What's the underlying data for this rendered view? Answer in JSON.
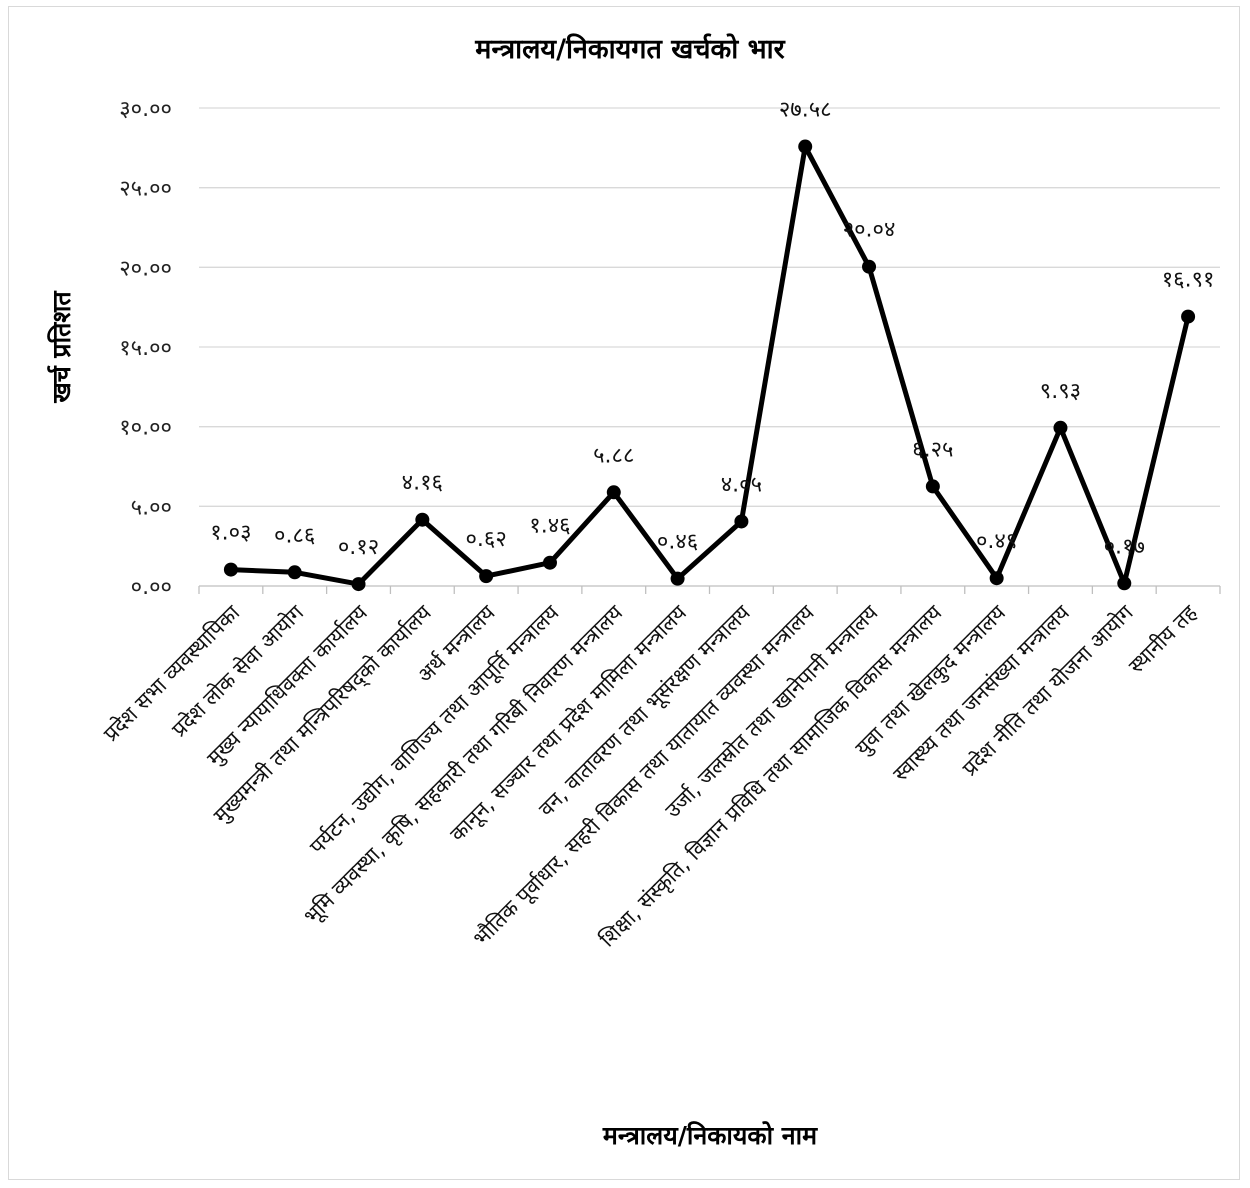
{
  "chart_data": {
    "type": "line",
    "title": "मन्त्रालय/निकायगत खर्चको भार",
    "xlabel": "मन्त्रालय/निकायको नाम",
    "ylabel": "खर्च प्रतिशत",
    "ylim": [
      0,
      30
    ],
    "yticks": [
      0,
      5,
      10,
      15,
      20,
      25,
      30
    ],
    "ytick_labels": [
      "०.००",
      "५.००",
      "१०.००",
      "१५.००",
      "२०.००",
      "२५.००",
      "३०.००"
    ],
    "grid": true,
    "legend": "none",
    "categories": [
      "प्रदेश सभा व्यवस्थापिका",
      "प्रदेश लोक सेवा आयोग",
      "मुख्य न्यायाधिवक्ता कार्यालय",
      "मुख्यमन्त्री तथा मन्त्रिपरिषद्को कार्यालय",
      "अर्थ मन्त्रालय",
      "पर्यटन, उद्योग, वाणिज्य तथा आपूर्ति मन्त्रालय",
      "भूमि व्यवस्था, कृषि, सहकारी तथा गरिबी निवारण मन्त्रालय",
      "कानून, सञ्चार तथा प्रदेश मामिला मन्त्रालय",
      "वन, वातावरण तथा भूसंरक्षण मन्त्रालय",
      "भौतिक पूर्वाधार, सहरी विकास तथा यातायात व्यवस्था मन्त्रालय",
      "उर्जा, जलस्रोत तथा खानेपानी मन्त्रालय",
      "शिक्षा, संस्कृति, विज्ञान प्रविधि तथा सामाजिक विकास मन्त्रालय",
      "युवा तथा खेलकुद मन्त्रालय",
      "स्वास्थ्य तथा जनसंख्या मन्त्रालय",
      "प्रदेश नीति तथा योजना आयोग",
      "स्थानीय तह"
    ],
    "values": [
      1.03,
      0.86,
      0.12,
      4.16,
      0.62,
      1.46,
      5.88,
      0.46,
      4.05,
      27.58,
      20.04,
      6.25,
      0.49,
      9.93,
      0.17,
      16.91
    ],
    "data_labels": [
      "१.०३",
      "०.८६",
      "०.१२",
      "४.१६",
      "०.६२",
      "१.४६",
      "५.८८",
      "०.४६",
      "४.०५",
      "२७.५८",
      "२०.०४",
      "६.२५",
      "०.४९",
      "९.९३",
      "०.१७",
      "१६.९१"
    ],
    "series_color": "#000000",
    "grid_color": "#d9d9d9"
  }
}
